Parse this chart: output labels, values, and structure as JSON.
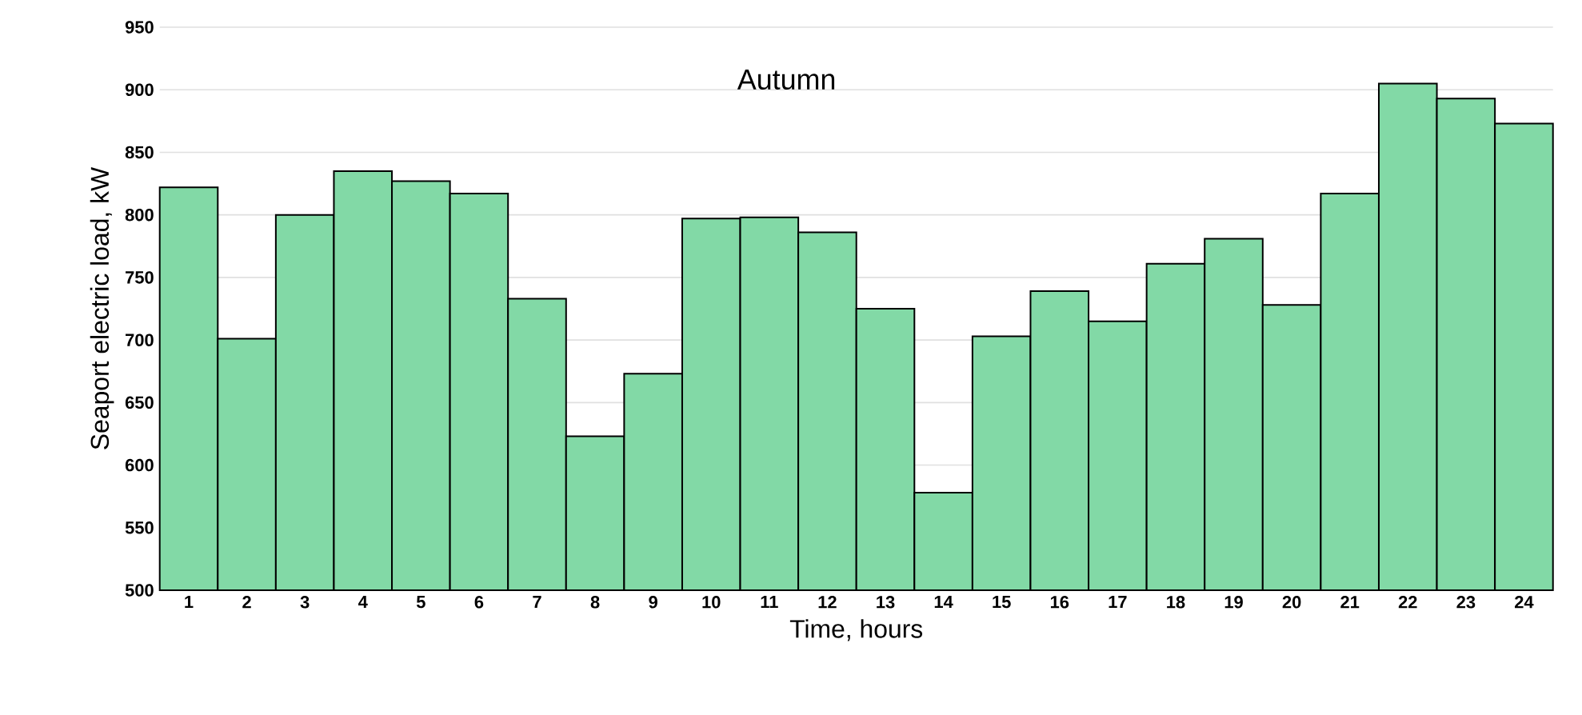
{
  "chart_data": {
    "type": "bar",
    "title": "Autumn",
    "xlabel": "Time, hours",
    "ylabel": "Seaport electric load, kW",
    "categories": [
      "1",
      "2",
      "3",
      "4",
      "5",
      "6",
      "7",
      "8",
      "9",
      "10",
      "11",
      "12",
      "13",
      "14",
      "15",
      "16",
      "17",
      "18",
      "19",
      "20",
      "21",
      "22",
      "23",
      "24"
    ],
    "values": [
      822,
      701,
      800,
      835,
      827,
      817,
      733,
      623,
      673,
      797,
      798,
      786,
      725,
      578,
      703,
      739,
      715,
      761,
      781,
      728,
      817,
      905,
      893,
      873
    ],
    "color": "#82d9a6",
    "ylim": [
      500,
      950
    ],
    "yticks": [
      500,
      550,
      600,
      650,
      700,
      750,
      800,
      850,
      900,
      950
    ],
    "grid": "y"
  }
}
